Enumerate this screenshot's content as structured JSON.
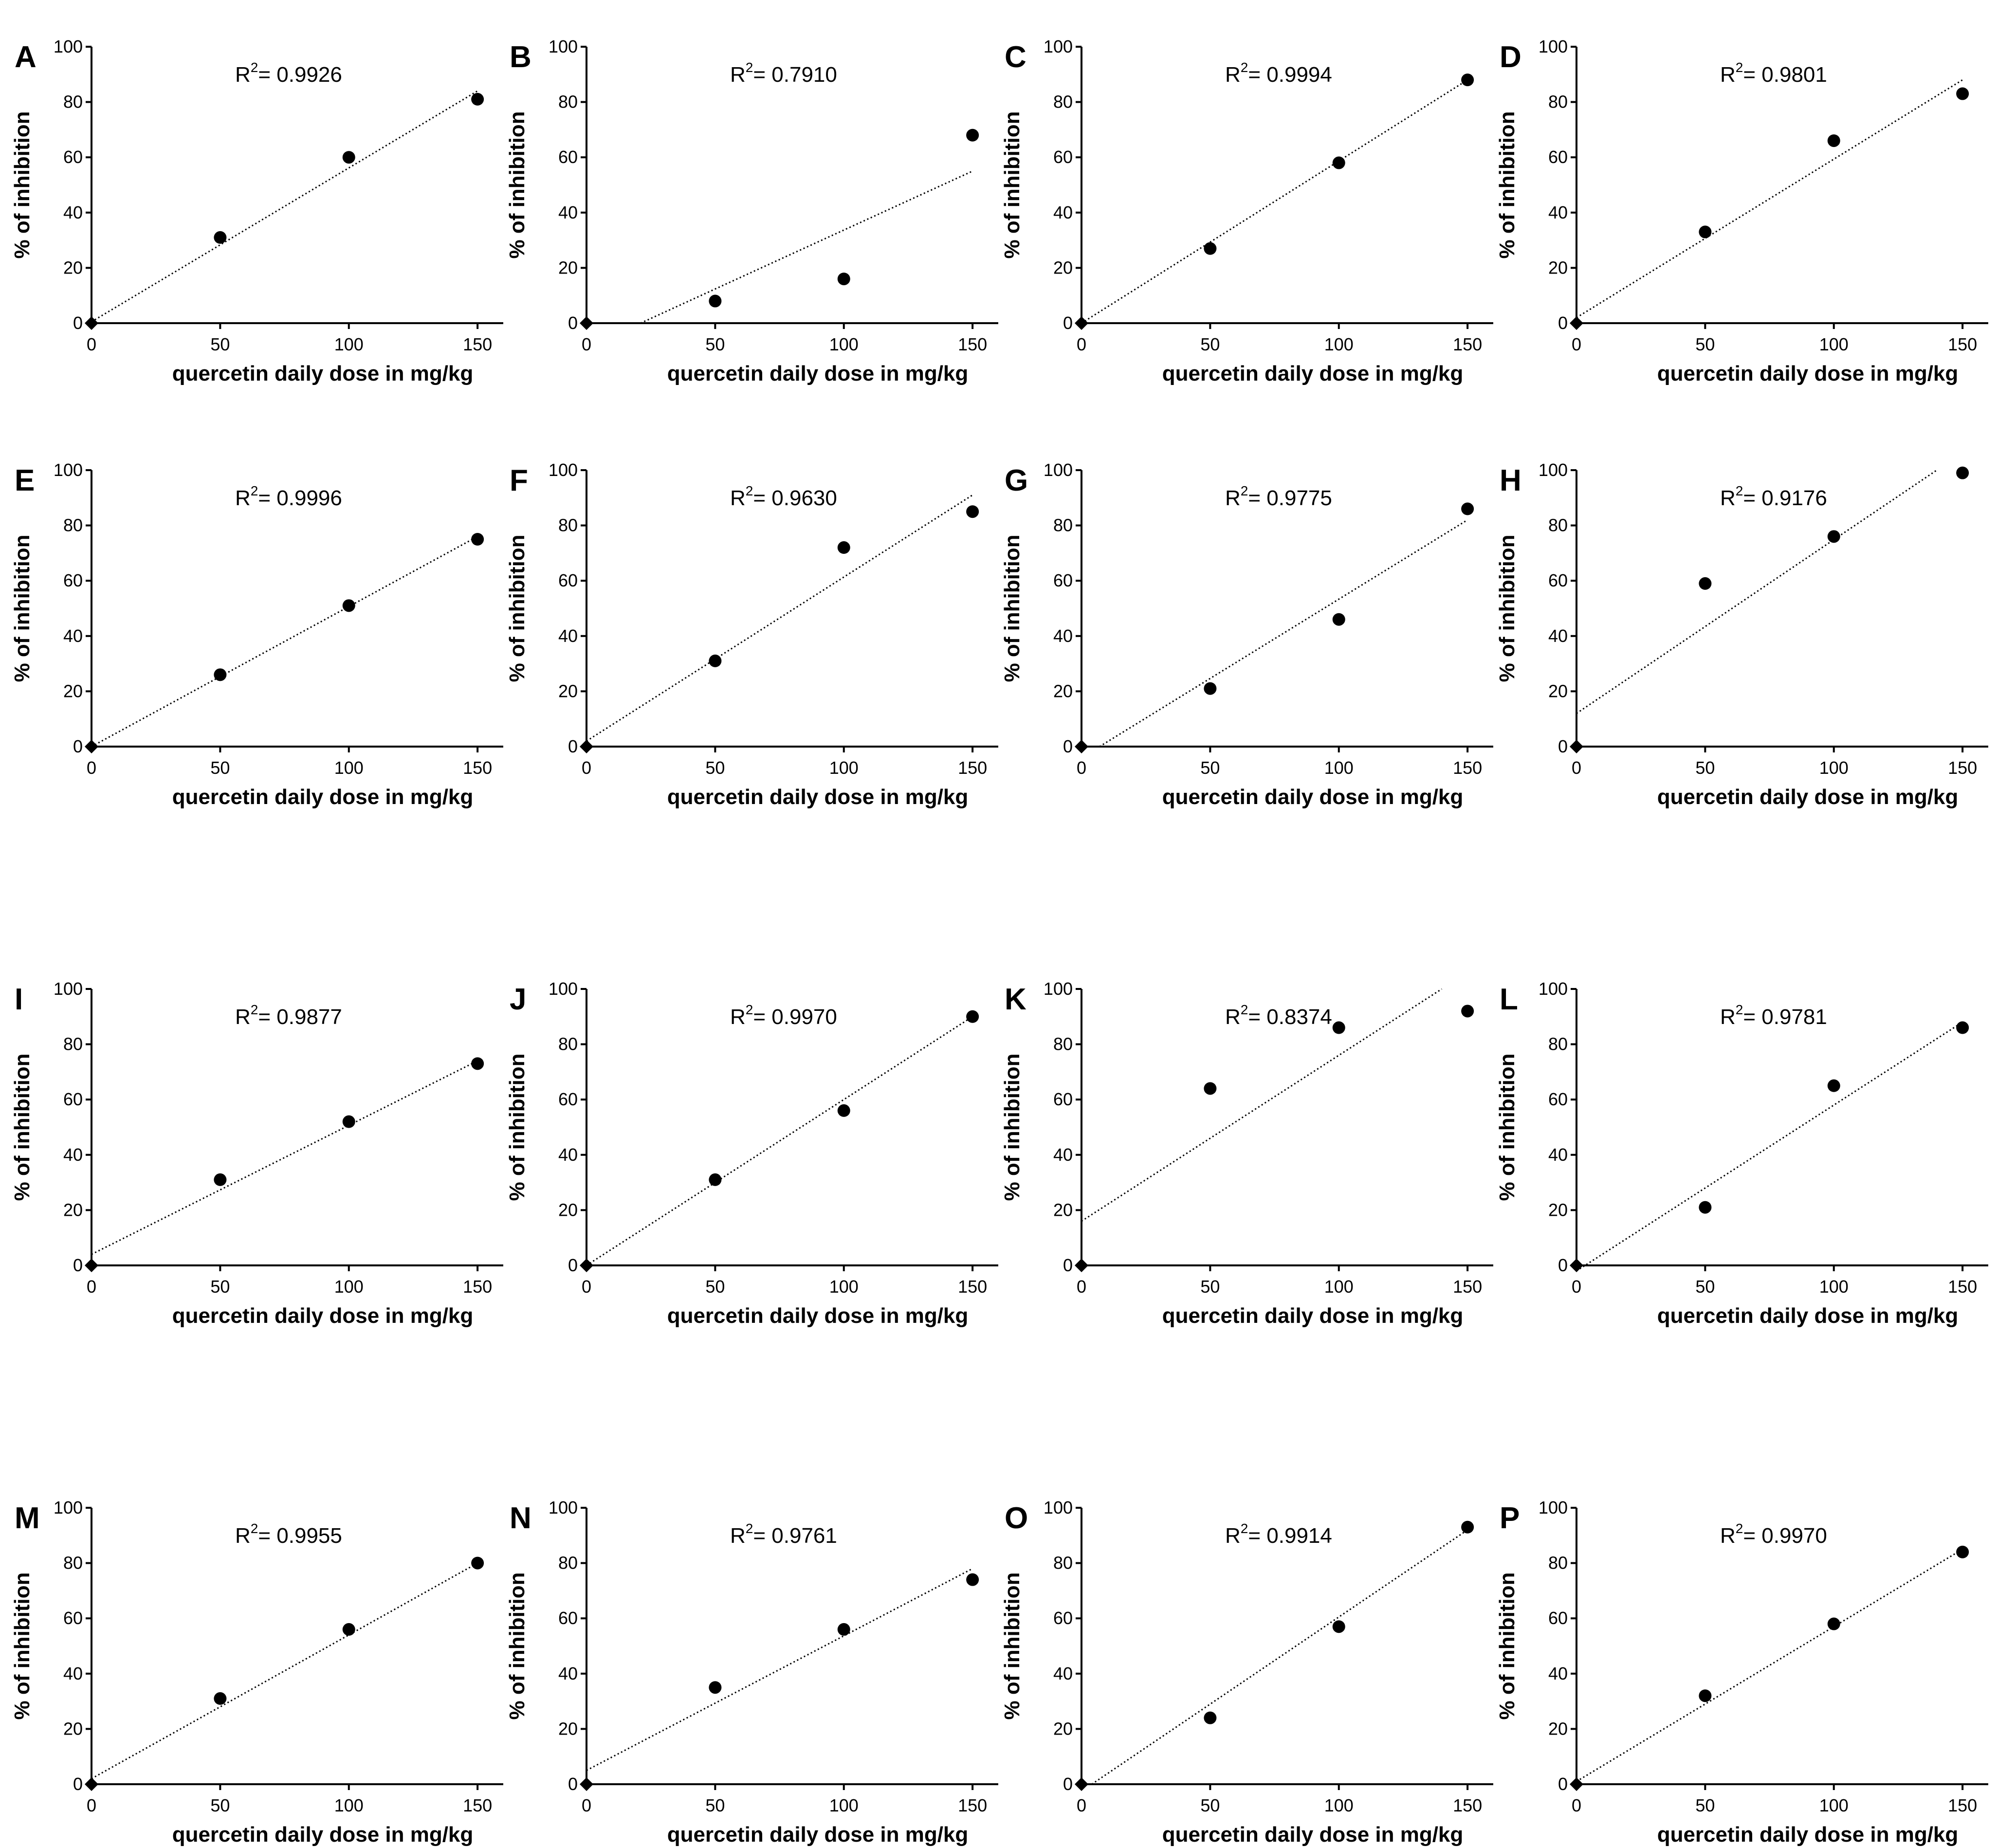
{
  "figure": {
    "x_axis_label": "quercetin daily dose in mg/kg",
    "y_axis_label": "% of inhibition",
    "r2_prefix": "R",
    "r2_sup": "2",
    "colors": {
      "ink": "#000000",
      "background": "#ffffff"
    }
  },
  "chart_data": [
    {
      "type": "scatter",
      "panel": "A",
      "r2_value": "= 0.9926",
      "xlabel": "quercetin daily dose in mg/kg",
      "ylabel": "% of inhibition",
      "x": [
        0,
        50,
        100,
        150
      ],
      "y": [
        0,
        31,
        60,
        81
      ],
      "fit": {
        "x": [
          0,
          150
        ],
        "y": [
          0.5,
          84
        ]
      },
      "xlim": [
        0,
        160
      ],
      "ylim": [
        0,
        100
      ],
      "xticks": [
        0,
        50,
        100,
        150
      ],
      "yticks": [
        0,
        20,
        40,
        60,
        80,
        100
      ]
    },
    {
      "type": "scatter",
      "panel": "B",
      "r2_value": "= 0.7910",
      "xlabel": "quercetin daily dose in mg/kg",
      "ylabel": "% of inhibition",
      "x": [
        0,
        50,
        100,
        150
      ],
      "y": [
        0,
        8,
        16,
        68
      ],
      "fit": {
        "x": [
          21,
          150
        ],
        "y": [
          0,
          55
        ]
      },
      "xlim": [
        0,
        160
      ],
      "ylim": [
        0,
        100
      ],
      "xticks": [
        0,
        50,
        100,
        150
      ],
      "yticks": [
        0,
        20,
        40,
        60,
        80,
        100
      ]
    },
    {
      "type": "scatter",
      "panel": "C",
      "r2_value": "= 0.9994",
      "xlabel": "quercetin daily dose in mg/kg",
      "ylabel": "% of inhibition",
      "x": [
        0,
        50,
        100,
        150
      ],
      "y": [
        0,
        27,
        58,
        88
      ],
      "fit": {
        "x": [
          0,
          150
        ],
        "y": [
          0,
          88
        ]
      },
      "xlim": [
        0,
        160
      ],
      "ylim": [
        0,
        100
      ],
      "xticks": [
        0,
        50,
        100,
        150
      ],
      "yticks": [
        0,
        20,
        40,
        60,
        80,
        100
      ]
    },
    {
      "type": "scatter",
      "panel": "D",
      "r2_value": "= 0.9801",
      "xlabel": "quercetin daily dose in mg/kg",
      "ylabel": "% of inhibition",
      "x": [
        0,
        50,
        100,
        150
      ],
      "y": [
        0,
        33,
        66,
        83
      ],
      "fit": {
        "x": [
          0,
          150
        ],
        "y": [
          2,
          88
        ]
      },
      "xlim": [
        0,
        160
      ],
      "ylim": [
        0,
        100
      ],
      "xticks": [
        0,
        50,
        100,
        150
      ],
      "yticks": [
        0,
        20,
        40,
        60,
        80,
        100
      ]
    },
    {
      "type": "scatter",
      "panel": "E",
      "r2_value": "= 0.9996",
      "xlabel": "quercetin daily dose in mg/kg",
      "ylabel": "% of inhibition",
      "x": [
        0,
        50,
        100,
        150
      ],
      "y": [
        0,
        26,
        51,
        75
      ],
      "fit": {
        "x": [
          0,
          150
        ],
        "y": [
          0,
          76
        ]
      },
      "xlim": [
        0,
        160
      ],
      "ylim": [
        0,
        100
      ],
      "xticks": [
        0,
        50,
        100,
        150
      ],
      "yticks": [
        0,
        20,
        40,
        60,
        80,
        100
      ]
    },
    {
      "type": "scatter",
      "panel": "F",
      "r2_value": "= 0.9630",
      "xlabel": "quercetin daily dose in mg/kg",
      "ylabel": "% of inhibition",
      "x": [
        0,
        50,
        100,
        150
      ],
      "y": [
        0,
        31,
        72,
        85
      ],
      "fit": {
        "x": [
          0,
          150
        ],
        "y": [
          2,
          91
        ]
      },
      "xlim": [
        0,
        160
      ],
      "ylim": [
        0,
        100
      ],
      "xticks": [
        0,
        50,
        100,
        150
      ],
      "yticks": [
        0,
        20,
        40,
        60,
        80,
        100
      ]
    },
    {
      "type": "scatter",
      "panel": "G",
      "r2_value": "= 0.9775",
      "xlabel": "quercetin daily dose in mg/kg",
      "ylabel": "% of inhibition",
      "x": [
        0,
        50,
        100,
        150
      ],
      "y": [
        0,
        21,
        46,
        86
      ],
      "fit": {
        "x": [
          7,
          150
        ],
        "y": [
          0,
          82
        ]
      },
      "xlim": [
        0,
        160
      ],
      "ylim": [
        0,
        100
      ],
      "xticks": [
        0,
        50,
        100,
        150
      ],
      "yticks": [
        0,
        20,
        40,
        60,
        80,
        100
      ]
    },
    {
      "type": "scatter",
      "panel": "H",
      "r2_value": "= 0.9176",
      "xlabel": "quercetin daily dose in mg/kg",
      "ylabel": "% of inhibition",
      "x": [
        0,
        50,
        100,
        150
      ],
      "y": [
        0,
        59,
        76,
        99
      ],
      "fit": {
        "x": [
          0,
          140
        ],
        "y": [
          12,
          100
        ]
      },
      "xlim": [
        0,
        160
      ],
      "ylim": [
        0,
        100
      ],
      "xticks": [
        0,
        50,
        100,
        150
      ],
      "yticks": [
        0,
        20,
        40,
        60,
        80,
        100
      ]
    },
    {
      "type": "scatter",
      "panel": "I",
      "r2_value": "= 0.9877",
      "xlabel": "quercetin daily dose in mg/kg",
      "ylabel": "% of inhibition",
      "x": [
        0,
        50,
        100,
        150
      ],
      "y": [
        0,
        31,
        52,
        73
      ],
      "fit": {
        "x": [
          0,
          150
        ],
        "y": [
          4,
          74
        ]
      },
      "xlim": [
        0,
        160
      ],
      "ylim": [
        0,
        100
      ],
      "xticks": [
        0,
        50,
        100,
        150
      ],
      "yticks": [
        0,
        20,
        40,
        60,
        80,
        100
      ]
    },
    {
      "type": "scatter",
      "panel": "J",
      "r2_value": "= 0.9970",
      "xlabel": "quercetin daily dose in mg/kg",
      "ylabel": "% of inhibition",
      "x": [
        0,
        50,
        100,
        150
      ],
      "y": [
        0,
        31,
        56,
        90
      ],
      "fit": {
        "x": [
          0,
          150
        ],
        "y": [
          0,
          90
        ]
      },
      "xlim": [
        0,
        160
      ],
      "ylim": [
        0,
        100
      ],
      "xticks": [
        0,
        50,
        100,
        150
      ],
      "yticks": [
        0,
        20,
        40,
        60,
        80,
        100
      ]
    },
    {
      "type": "scatter",
      "panel": "K",
      "r2_value": "= 0.8374",
      "xlabel": "quercetin daily dose in mg/kg",
      "ylabel": "% of inhibition",
      "x": [
        0,
        50,
        100,
        150
      ],
      "y": [
        0,
        64,
        86,
        92
      ],
      "fit": {
        "x": [
          0,
          140
        ],
        "y": [
          16,
          100
        ]
      },
      "xlim": [
        0,
        160
      ],
      "ylim": [
        0,
        100
      ],
      "xticks": [
        0,
        50,
        100,
        150
      ],
      "yticks": [
        0,
        20,
        40,
        60,
        80,
        100
      ]
    },
    {
      "type": "scatter",
      "panel": "L",
      "r2_value": "=  0.9781",
      "xlabel": "quercetin daily dose in mg/kg",
      "ylabel": "% of inhibition",
      "x": [
        0,
        50,
        100,
        150
      ],
      "y": [
        0,
        21,
        65,
        86
      ],
      "fit": {
        "x": [
          0,
          150
        ],
        "y": [
          -2,
          88
        ]
      },
      "xlim": [
        0,
        160
      ],
      "ylim": [
        0,
        100
      ],
      "xticks": [
        0,
        50,
        100,
        150
      ],
      "yticks": [
        0,
        20,
        40,
        60,
        80,
        100
      ]
    },
    {
      "type": "scatter",
      "panel": "M",
      "r2_value": "= 0.9955",
      "xlabel": "quercetin daily dose in mg/kg",
      "ylabel": "% of inhibition",
      "x": [
        0,
        50,
        100,
        150
      ],
      "y": [
        0,
        31,
        56,
        80
      ],
      "fit": {
        "x": [
          0,
          150
        ],
        "y": [
          2,
          80
        ]
      },
      "xlim": [
        0,
        160
      ],
      "ylim": [
        0,
        100
      ],
      "xticks": [
        0,
        50,
        100,
        150
      ],
      "yticks": [
        0,
        20,
        40,
        60,
        80,
        100
      ]
    },
    {
      "type": "scatter",
      "panel": "N",
      "r2_value": "=  0.9761",
      "xlabel": "quercetin daily dose in mg/kg",
      "ylabel": "% of inhibition",
      "x": [
        0,
        50,
        100,
        150
      ],
      "y": [
        0,
        35,
        56,
        74
      ],
      "fit": {
        "x": [
          0,
          150
        ],
        "y": [
          5,
          78
        ]
      },
      "xlim": [
        0,
        160
      ],
      "ylim": [
        0,
        100
      ],
      "xticks": [
        0,
        50,
        100,
        150
      ],
      "yticks": [
        0,
        20,
        40,
        60,
        80,
        100
      ]
    },
    {
      "type": "scatter",
      "panel": "O",
      "r2_value": "= 0.9914",
      "xlabel": "quercetin daily dose in mg/kg",
      "ylabel": "% of inhibition",
      "x": [
        0,
        50,
        100,
        150
      ],
      "y": [
        0,
        24,
        57,
        93
      ],
      "fit": {
        "x": [
          4,
          150
        ],
        "y": [
          0,
          92
        ]
      },
      "xlim": [
        0,
        160
      ],
      "ylim": [
        0,
        100
      ],
      "xticks": [
        0,
        50,
        100,
        150
      ],
      "yticks": [
        0,
        20,
        40,
        60,
        80,
        100
      ]
    },
    {
      "type": "scatter",
      "panel": "P",
      "r2_value": "= 0.9970",
      "xlabel": "quercetin daily dose in mg/kg",
      "ylabel": "% of inhibition",
      "x": [
        0,
        50,
        100,
        150
      ],
      "y": [
        0,
        32,
        58,
        84
      ],
      "fit": {
        "x": [
          0,
          150
        ],
        "y": [
          1,
          85
        ]
      },
      "xlim": [
        0,
        160
      ],
      "ylim": [
        0,
        100
      ],
      "xticks": [
        0,
        50,
        100,
        150
      ],
      "yticks": [
        0,
        20,
        40,
        60,
        80,
        100
      ]
    }
  ]
}
